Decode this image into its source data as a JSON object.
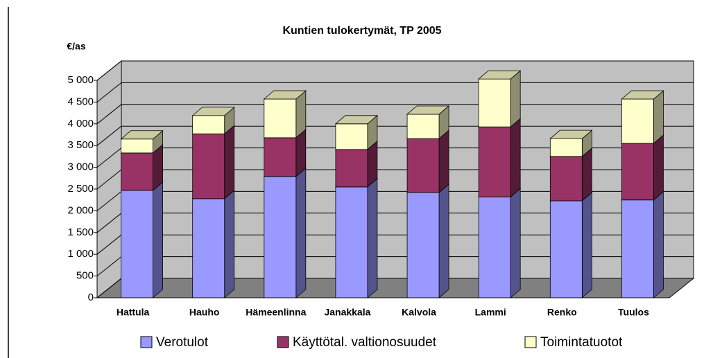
{
  "chart_data": {
    "type": "bar3d_stacked",
    "title": "Kuntien tulokertymät, TP 2005",
    "y_label": "€/as",
    "categories": [
      "Hattula",
      "Hauho",
      "Hämeenlinna",
      "Janakkala",
      "Kalvola",
      "Lammi",
      "Renko",
      "Tuulos"
    ],
    "series": [
      {
        "name": "Verotulot",
        "color": "#9999ff",
        "values": [
          2470,
          2280,
          2790,
          2550,
          2420,
          2320,
          2230,
          2250
        ]
      },
      {
        "name": "Käyttötal. valtionosuudet",
        "color": "#993366",
        "values": [
          860,
          1490,
          890,
          860,
          1240,
          1610,
          1020,
          1300
        ]
      },
      {
        "name": "Toimintatuotot",
        "color": "#ffffcc",
        "values": [
          320,
          420,
          890,
          590,
          560,
          1100,
          410,
          1020
        ]
      }
    ],
    "ylim": [
      0,
      5000
    ],
    "yticks": [
      0,
      500,
      {
        "value": 1000,
        "label": "1 000"
      },
      {
        "value": 1500,
        "label": "1 500"
      },
      {
        "value": 2000,
        "label": "2 000"
      },
      {
        "value": 2500,
        "label": "2 500"
      },
      {
        "value": 3000,
        "label": "3 000"
      },
      {
        "value": 3500,
        "label": "3 500"
      },
      {
        "value": 4000,
        "label": "4 000"
      },
      {
        "value": 4500,
        "label": "4 500"
      },
      {
        "value": 5000,
        "label": "5 000"
      }
    ],
    "grid": true,
    "legend": "bottom"
  }
}
